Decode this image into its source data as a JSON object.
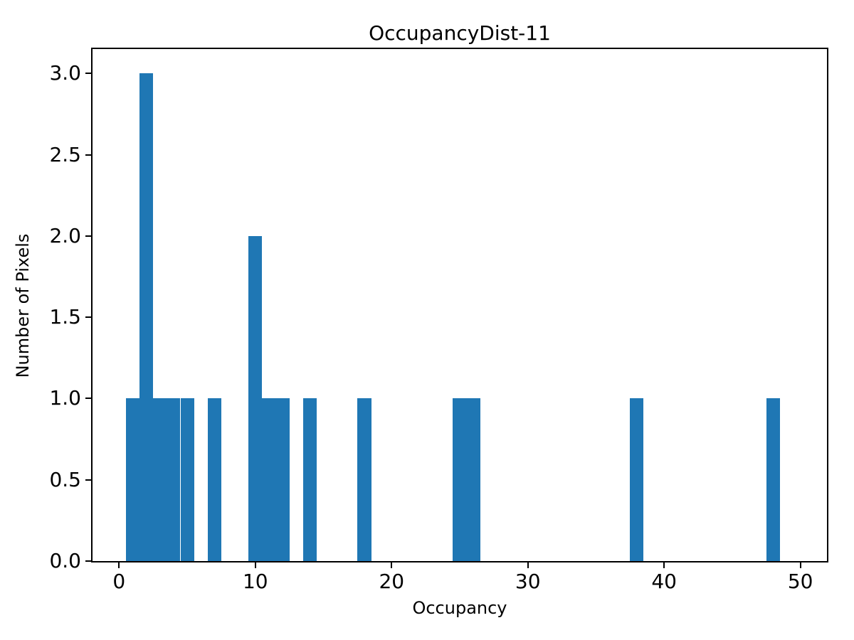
{
  "chart_data": {
    "type": "bar",
    "subtype": "histogram",
    "title": "OccupancyDist-11",
    "xlabel": "Occupancy",
    "ylabel": "Number of Pixels",
    "bar_color": "#1f77b4",
    "background_color": "#ffffff",
    "spine_color": "#000000",
    "grid": false,
    "legend_position": "none",
    "xlim": [
      -1.95,
      51.95
    ],
    "ylim": [
      0,
      3.15
    ],
    "xticks": [
      0,
      10,
      20,
      30,
      40,
      50
    ],
    "xtick_labels": [
      "0",
      "10",
      "20",
      "30",
      "40",
      "50"
    ],
    "yticks": [
      0,
      0.5,
      1,
      1.5,
      2,
      2.5,
      3
    ],
    "ytick_labels": [
      "0.0",
      "0.5",
      "1.0",
      "1.5",
      "2.0",
      "2.5",
      "3.0"
    ],
    "bin_width": 1,
    "bin_centers": [
      1,
      2,
      3,
      4,
      5,
      7,
      10,
      11,
      12,
      14,
      18,
      25,
      26,
      38,
      48
    ],
    "counts": [
      1,
      3,
      1,
      1,
      1,
      1,
      2,
      1,
      1,
      1,
      1,
      1,
      1,
      1,
      1
    ]
  }
}
